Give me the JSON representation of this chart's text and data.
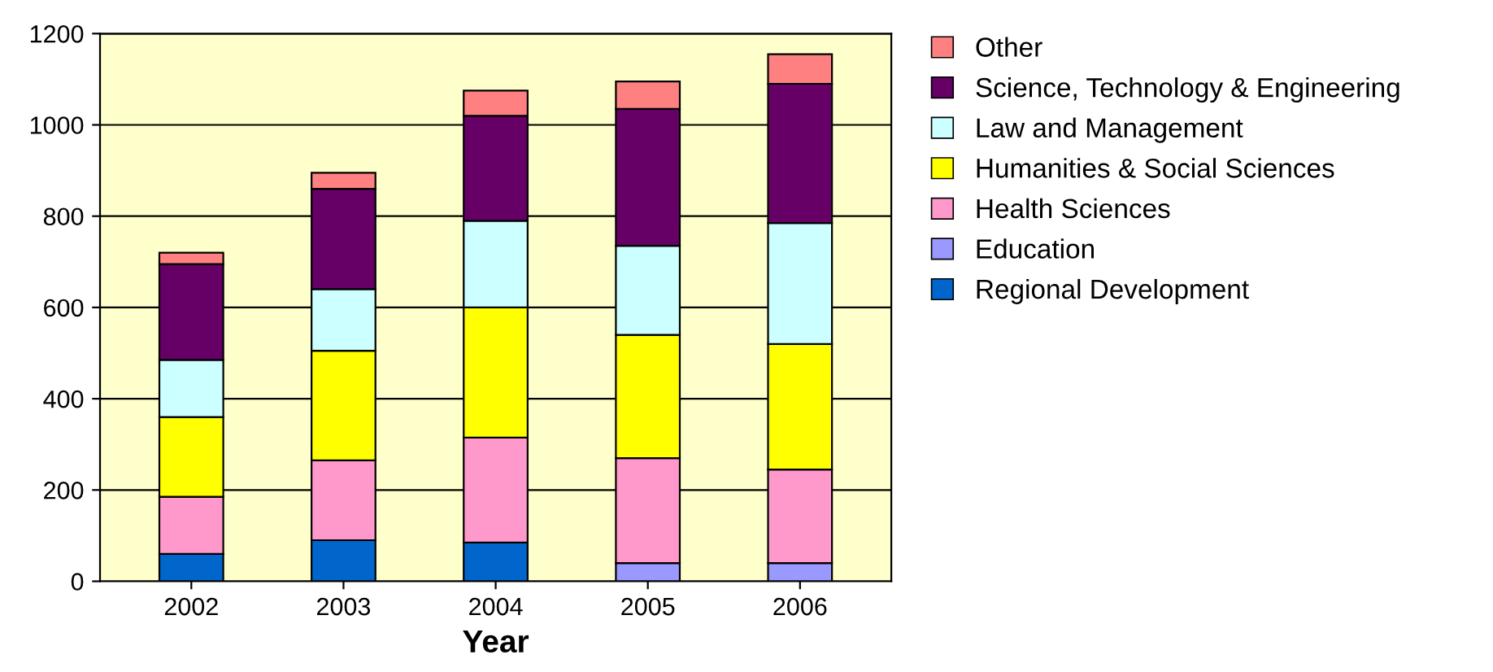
{
  "chart_data": {
    "type": "bar",
    "stacked": true,
    "xlabel": "Year",
    "categories": [
      "2002",
      "2003",
      "2004",
      "2005",
      "2006"
    ],
    "series": [
      {
        "name": "Regional Development",
        "color": "#0066cc",
        "values": [
          60,
          90,
          85,
          0,
          0
        ]
      },
      {
        "name": "Education",
        "color": "#9999ff",
        "values": [
          0,
          0,
          0,
          40,
          40
        ]
      },
      {
        "name": "Health Sciences",
        "color": "#ff99cc",
        "values": [
          125,
          175,
          230,
          230,
          205
        ]
      },
      {
        "name": "Humanities & Social Sciences",
        "color": "#ffff00",
        "values": [
          175,
          240,
          285,
          270,
          275
        ]
      },
      {
        "name": "Law and Management",
        "color": "#ccffff",
        "values": [
          125,
          135,
          190,
          195,
          265
        ]
      },
      {
        "name": "Science, Technology & Engineering",
        "color": "#660066",
        "values": [
          210,
          220,
          230,
          300,
          305
        ]
      },
      {
        "name": "Other",
        "color": "#ff8080",
        "values": [
          25,
          35,
          55,
          60,
          65
        ]
      }
    ],
    "ylim": [
      0,
      1200
    ],
    "yticks": [
      0,
      200,
      400,
      600,
      800,
      1000,
      1200
    ],
    "grid": "y",
    "legend": "right"
  }
}
